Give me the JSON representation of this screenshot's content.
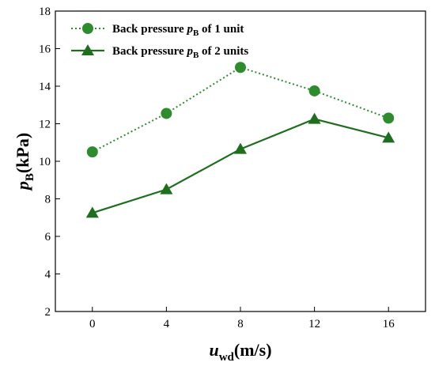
{
  "chart_data": {
    "type": "line",
    "x": [
      0,
      4,
      8,
      12,
      16
    ],
    "xticks": [
      "0",
      "4",
      "8",
      "12",
      "16"
    ],
    "yticks": [
      "2",
      "4",
      "6",
      "8",
      "10",
      "12",
      "14",
      "16",
      "18"
    ],
    "xlim": [
      -2,
      18
    ],
    "ylim": [
      2,
      18
    ],
    "xlabel": {
      "main": "u",
      "sub": "wd",
      "rest": "(m/s)"
    },
    "ylabel": {
      "main": "p",
      "sub": "B",
      "rest": "(kPa)"
    },
    "grid": false,
    "legend_position": "top-left",
    "series": [
      {
        "legend": {
          "pre": "Back pressure ",
          "main": "p",
          "sub": "B",
          "post": " of 1 unit"
        },
        "values": [
          10.5,
          12.55,
          15.0,
          13.75,
          12.3
        ],
        "marker": "circle",
        "line_style": "dotted",
        "color": "#2e8b2e"
      },
      {
        "legend": {
          "pre": "Back pressure ",
          "main": "p",
          "sub": "B",
          "post": " of 2 units"
        },
        "values": [
          7.25,
          8.5,
          10.65,
          12.25,
          11.25
        ],
        "marker": "triangle",
        "line_style": "solid",
        "color": "#1f6e1f"
      }
    ]
  }
}
